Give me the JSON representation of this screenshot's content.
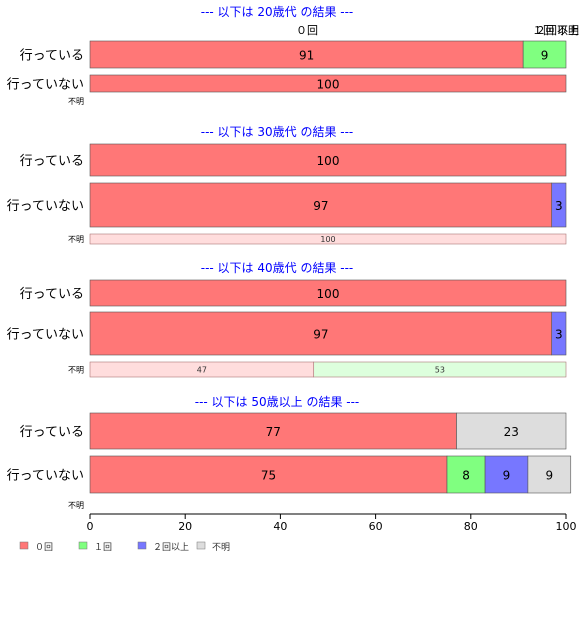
{
  "chart_data": {
    "type": "bar",
    "orientation": "horizontal",
    "stacked": true,
    "xlim": [
      0,
      100
    ],
    "xticks": [
      "0",
      "20",
      "40",
      "60",
      "80",
      "100"
    ],
    "legend_position": "bottom-left",
    "series": [
      {
        "name": "０回",
        "color": "#FF7777"
      },
      {
        "name": "１回",
        "color": "#80FF80"
      },
      {
        "name": "２回以上",
        "color": "#7777FF"
      },
      {
        "name": "不明",
        "color": "#DDDDDD"
      }
    ],
    "top_labels": [
      "０回",
      "１回",
      "２回以上",
      "不明"
    ],
    "panels": [
      {
        "title": "--- 以下は 20歳代 の結果 ---",
        "rows": [
          {
            "label": "行っている",
            "values": [
              91,
              9,
              0,
              0
            ]
          },
          {
            "label": "行っていない",
            "values": [
              100,
              0,
              0,
              0
            ]
          },
          {
            "label": "不明",
            "values": [
              0,
              0,
              0,
              0
            ]
          }
        ]
      },
      {
        "title": "--- 以下は 30歳代 の結果 ---",
        "rows": [
          {
            "label": "行っている",
            "values": [
              100,
              0,
              0,
              0
            ]
          },
          {
            "label": "行っていない",
            "values": [
              97,
              0,
              3,
              0
            ]
          },
          {
            "label": "不明",
            "values": [
              100,
              0,
              0,
              0
            ]
          }
        ]
      },
      {
        "title": "--- 以下は 40歳代 の結果 ---",
        "rows": [
          {
            "label": "行っている",
            "values": [
              100,
              0,
              0,
              0
            ]
          },
          {
            "label": "行っていない",
            "values": [
              97,
              0,
              3,
              0
            ]
          },
          {
            "label": "不明",
            "values": [
              47,
              53,
              0,
              0
            ]
          }
        ]
      },
      {
        "title": "--- 以下は 50歳以上 の結果 ---",
        "rows": [
          {
            "label": "行っている",
            "values": [
              77,
              0,
              0,
              23
            ]
          },
          {
            "label": "行っていない",
            "values": [
              75,
              8,
              9,
              9
            ]
          },
          {
            "label": "不明",
            "values": [
              0,
              0,
              0,
              0
            ]
          }
        ]
      }
    ]
  }
}
